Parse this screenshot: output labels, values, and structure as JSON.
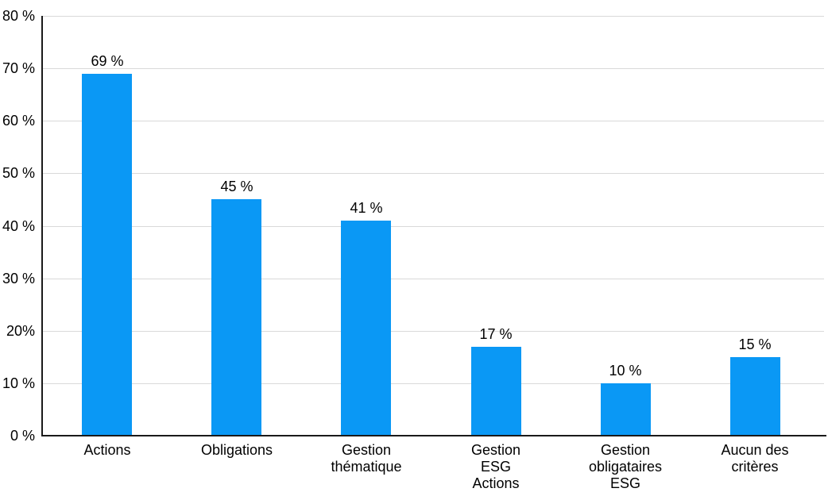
{
  "chart_data": {
    "type": "bar",
    "title": "",
    "xlabel": "",
    "ylabel": "",
    "categories": [
      "Actions",
      "Obligations",
      "Gestion thématique",
      "Gestion ESG Actions",
      "Gestion obligataires ESG",
      "Aucun des critères"
    ],
    "category_lines": [
      [
        "Actions"
      ],
      [
        "Obligations"
      ],
      [
        "Gestion",
        "thématique"
      ],
      [
        "Gestion",
        "ESG",
        "Actions"
      ],
      [
        "Gestion",
        "obligataires",
        "ESG"
      ],
      [
        "Aucun des",
        "critères"
      ]
    ],
    "values": [
      69,
      45,
      41,
      17,
      10,
      15
    ],
    "value_labels": [
      "69 %",
      "45 %",
      "41 %",
      "17 %",
      "10 %",
      "15 %"
    ],
    "ylim": [
      0,
      80
    ],
    "y_tick_values": [
      0,
      10,
      20,
      30,
      40,
      50,
      60,
      70,
      80
    ],
    "y_tick_labels": [
      "0 %",
      "10 %",
      "20%",
      "30 %",
      "40 %",
      "50 %",
      "60 %",
      "70 %",
      "80 %"
    ],
    "grid": true,
    "legend": false,
    "colors": {
      "bar": "#0A98F5",
      "gridline": "#D9D9D9",
      "axis": "#1A1A1A",
      "text": "#000000",
      "background": "#FFFFFF"
    }
  }
}
